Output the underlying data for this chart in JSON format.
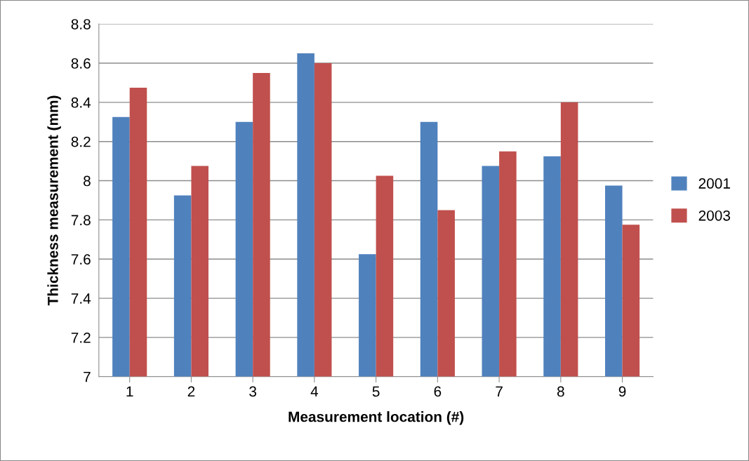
{
  "chart_data": {
    "type": "bar",
    "xlabel": "Measurement location (#)",
    "ylabel": "Thickness measurement (mm)",
    "categories": [
      "1",
      "2",
      "3",
      "4",
      "5",
      "6",
      "7",
      "8",
      "9"
    ],
    "series": [
      {
        "name": "2001",
        "color": "#4f81bd",
        "values": [
          8.325,
          7.925,
          8.3,
          8.65,
          7.625,
          8.3,
          8.075,
          8.125,
          7.975
        ]
      },
      {
        "name": "2003",
        "color": "#c0504d",
        "values": [
          8.475,
          8.075,
          8.55,
          8.6,
          8.025,
          7.85,
          8.15,
          8.4,
          7.775
        ]
      }
    ],
    "ylim": [
      7,
      8.8
    ],
    "yticks": [
      7,
      7.2,
      7.4,
      7.6,
      7.8,
      8,
      8.2,
      8.4,
      8.6,
      8.8
    ],
    "grid": "y",
    "legend": "right"
  }
}
